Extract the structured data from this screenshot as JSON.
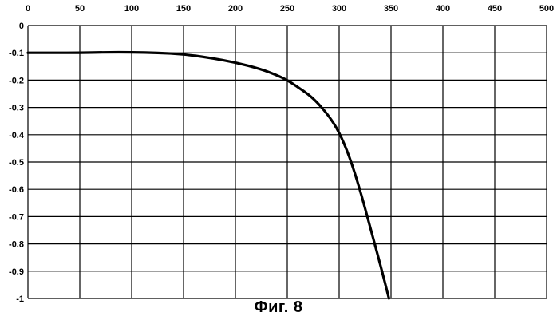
{
  "chart_data": {
    "type": "line",
    "title": "",
    "xlabel": "",
    "ylabel": "",
    "xlim": [
      0,
      500
    ],
    "ylim": [
      -1,
      0
    ],
    "x_ticks": [
      0,
      50,
      100,
      150,
      200,
      250,
      300,
      350,
      400,
      450,
      500
    ],
    "x_tick_labels": [
      "0",
      "50",
      "100",
      "150",
      "200",
      "250",
      "300",
      "350",
      "400",
      "450",
      "500"
    ],
    "y_ticks": [
      0,
      -0.1,
      -0.2,
      -0.3,
      -0.4,
      -0.5,
      -0.6,
      -0.7,
      -0.8,
      -0.9,
      -1
    ],
    "y_tick_labels": [
      "0",
      "-0.1",
      "-0.2",
      "-0.3",
      "-0.4",
      "-0.5",
      "-0.6",
      "-0.7",
      "-0.8",
      "-0.9",
      "-1"
    ],
    "x_axis_position": "top",
    "grid": true,
    "series": [
      {
        "x": [
          0,
          25,
          50,
          75,
          100,
          125,
          150,
          175,
          200,
          225,
          240,
          250,
          260,
          275,
          290,
          300,
          310,
          320,
          330,
          340,
          348
        ],
        "y": [
          -0.1,
          -0.1,
          -0.1,
          -0.098,
          -0.098,
          -0.1,
          -0.105,
          -0.118,
          -0.135,
          -0.16,
          -0.182,
          -0.2,
          -0.225,
          -0.265,
          -0.33,
          -0.39,
          -0.48,
          -0.6,
          -0.74,
          -0.88,
          -1.0
        ],
        "color": "#000000"
      }
    ],
    "caption": "Фиг. 8"
  }
}
